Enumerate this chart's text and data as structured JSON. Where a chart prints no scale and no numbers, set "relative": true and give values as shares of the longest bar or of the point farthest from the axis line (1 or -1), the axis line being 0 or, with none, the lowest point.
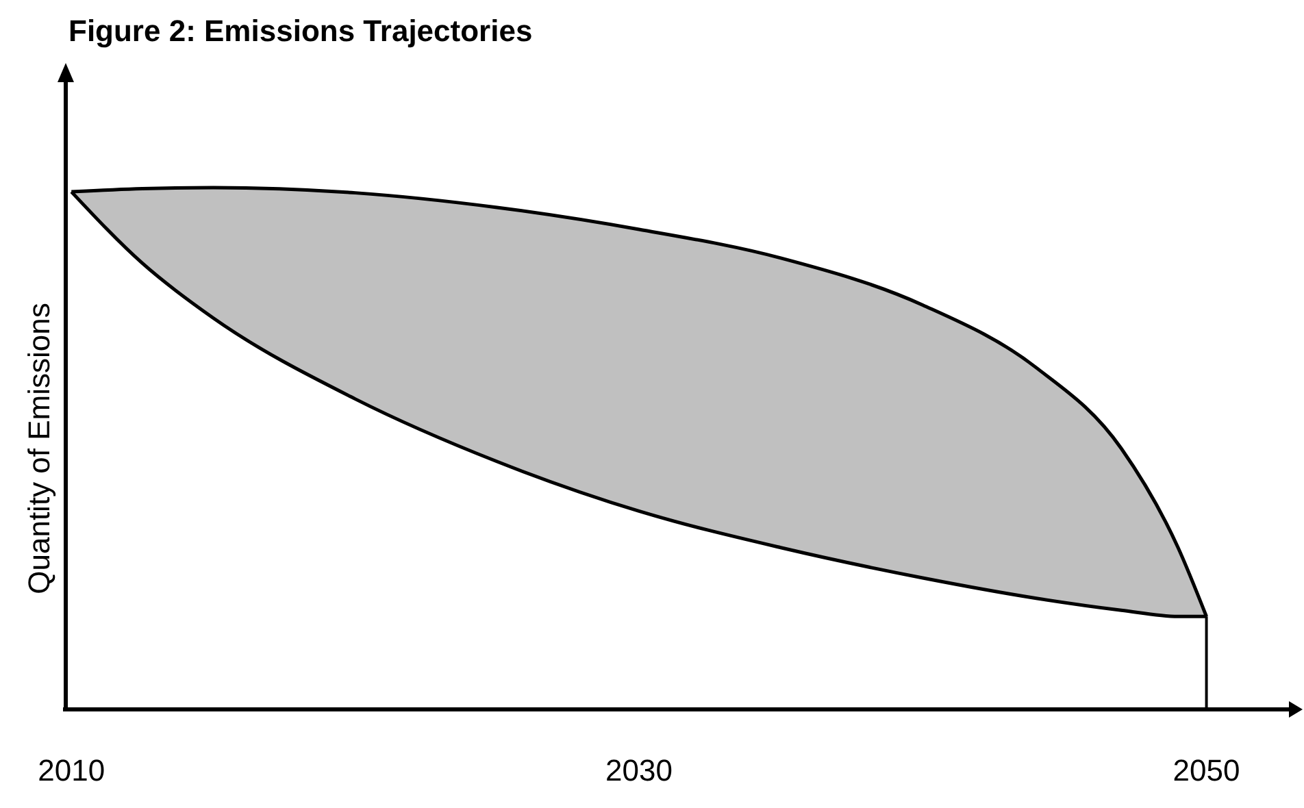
{
  "chart_data": {
    "type": "area",
    "title": "Figure 2: Emissions Trajectories",
    "ylabel": "Quantity of Emissions",
    "relative": true,
    "x": [
      2010,
      2012.5,
      2015,
      2020,
      2025,
      2030,
      2035,
      2040,
      2044,
      2047,
      2049,
      2050
    ],
    "series": [
      {
        "type": "line",
        "color": "#000000",
        "values": [
          0.992,
          0.855,
          0.75,
          0.595,
          0.475,
          0.38,
          0.31,
          0.252,
          0.213,
          0.19,
          0.178,
          0.178
        ]
      },
      {
        "color": "#c0c0c0",
        "values": [
          0.992,
          0.998,
          1.0,
          0.99,
          0.962,
          0.92,
          0.865,
          0.775,
          0.655,
          0.5,
          0.31,
          0.178
        ]
      }
    ],
    "xlim": [
      2009.8,
      2053.1
    ],
    "xticks": [
      2010,
      2030,
      2050
    ],
    "ref_lines": [
      {
        "axis": "x",
        "value": 2050
      }
    ]
  }
}
